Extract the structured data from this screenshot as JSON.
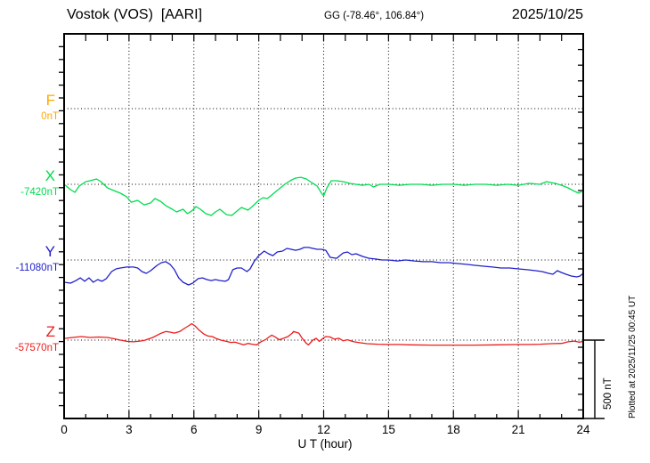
{
  "header": {
    "station": "Vostok (VOS)  [AARI]",
    "coords": "GG (-78.46°, 106.84°)",
    "date": "2025/10/25"
  },
  "axes": {
    "x_label": "U T (hour)",
    "x_ticks": [
      "0",
      "3",
      "6",
      "9",
      "12",
      "15",
      "18",
      "21",
      "24"
    ]
  },
  "scale_bar": {
    "label": "500 nT",
    "nT": 500
  },
  "footer_note": "Plotted at 2025/11/25 00:45 UT",
  "chart_data": {
    "type": "line",
    "title": "Vostok (VOS) [AARI] magnetogram 2025/10/25",
    "xlabel": "U T (hour)",
    "x_range": [
      0,
      24
    ],
    "x_ticks": [
      0,
      3,
      6,
      9,
      12,
      15,
      18,
      21,
      24
    ],
    "grid": "dotted vertical every 3 h, dotted horizontal baseline per component",
    "legend_position": "left margin",
    "y_scale": "scale bar of 500 nT at lower right",
    "points_format": "[hour_UT, deviation_nT_from_baseline]",
    "series": [
      {
        "name": "F",
        "color": "#FFA800",
        "baseline_label": "0nT",
        "baseline_nT": 0,
        "points": []
      },
      {
        "name": "X",
        "color": "#00DC50",
        "baseline_label": "-7420nT",
        "baseline_nT": -7420,
        "points": [
          [
            0,
            0
          ],
          [
            0.3,
            -34
          ],
          [
            0.5,
            -51
          ],
          [
            0.7,
            -11
          ],
          [
            1.0,
            17
          ],
          [
            1.2,
            23
          ],
          [
            1.5,
            34
          ],
          [
            1.7,
            17
          ],
          [
            2.0,
            -23
          ],
          [
            2.3,
            -40
          ],
          [
            2.6,
            -57
          ],
          [
            2.9,
            -80
          ],
          [
            3.1,
            -114
          ],
          [
            3.4,
            -102
          ],
          [
            3.7,
            -131
          ],
          [
            4.0,
            -119
          ],
          [
            4.2,
            -91
          ],
          [
            4.45,
            -108
          ],
          [
            4.7,
            -136
          ],
          [
            5.0,
            -159
          ],
          [
            5.2,
            -176
          ],
          [
            5.5,
            -159
          ],
          [
            5.7,
            -187
          ],
          [
            5.9,
            -170
          ],
          [
            6.1,
            -142
          ],
          [
            6.3,
            -159
          ],
          [
            6.55,
            -187
          ],
          [
            6.8,
            -199
          ],
          [
            7.0,
            -176
          ],
          [
            7.2,
            -159
          ],
          [
            7.5,
            -193
          ],
          [
            7.75,
            -199
          ],
          [
            8.0,
            -170
          ],
          [
            8.2,
            -148
          ],
          [
            8.5,
            -165
          ],
          [
            8.7,
            -142
          ],
          [
            9.0,
            -102
          ],
          [
            9.2,
            -85
          ],
          [
            9.4,
            -91
          ],
          [
            9.6,
            -68
          ],
          [
            9.8,
            -45
          ],
          [
            10.0,
            -23
          ],
          [
            10.2,
            0
          ],
          [
            10.45,
            23
          ],
          [
            10.7,
            40
          ],
          [
            10.95,
            45
          ],
          [
            11.2,
            34
          ],
          [
            11.45,
            11
          ],
          [
            11.7,
            -11
          ],
          [
            11.9,
            -57
          ],
          [
            12.0,
            -74
          ],
          [
            12.15,
            -23
          ],
          [
            12.35,
            23
          ],
          [
            12.6,
            23
          ],
          [
            12.9,
            17
          ],
          [
            13.2,
            6
          ],
          [
            13.5,
            0
          ],
          [
            13.8,
            -6
          ],
          [
            14.1,
            0
          ],
          [
            14.3,
            -17
          ],
          [
            14.6,
            0
          ],
          [
            15.0,
            0
          ],
          [
            15.5,
            -6
          ],
          [
            16.0,
            0
          ],
          [
            16.5,
            0
          ],
          [
            17.0,
            -6
          ],
          [
            17.5,
            0
          ],
          [
            18.0,
            0
          ],
          [
            18.5,
            -6
          ],
          [
            19.0,
            0
          ],
          [
            19.5,
            0
          ],
          [
            20.0,
            -6
          ],
          [
            20.5,
            0
          ],
          [
            21.0,
            -6
          ],
          [
            21.5,
            6
          ],
          [
            22.0,
            0
          ],
          [
            22.3,
            17
          ],
          [
            22.7,
            6
          ],
          [
            23.0,
            -6
          ],
          [
            23.3,
            -23
          ],
          [
            23.6,
            -45
          ],
          [
            23.8,
            -57
          ],
          [
            24.0,
            -40
          ]
        ]
      },
      {
        "name": "Y",
        "color": "#2020CC",
        "baseline_label": "-11080nT",
        "baseline_nT": -11080,
        "points": [
          [
            0,
            -142
          ],
          [
            0.3,
            -148
          ],
          [
            0.55,
            -131
          ],
          [
            0.75,
            -114
          ],
          [
            0.95,
            -136
          ],
          [
            1.15,
            -114
          ],
          [
            1.35,
            -142
          ],
          [
            1.55,
            -125
          ],
          [
            1.75,
            -136
          ],
          [
            1.95,
            -119
          ],
          [
            2.2,
            -74
          ],
          [
            2.4,
            -57
          ],
          [
            2.6,
            -51
          ],
          [
            2.9,
            -45
          ],
          [
            3.2,
            -45
          ],
          [
            3.4,
            -51
          ],
          [
            3.6,
            -74
          ],
          [
            3.8,
            -85
          ],
          [
            4.0,
            -68
          ],
          [
            4.3,
            -34
          ],
          [
            4.5,
            -17
          ],
          [
            4.7,
            -11
          ],
          [
            4.9,
            -28
          ],
          [
            5.1,
            -62
          ],
          [
            5.3,
            -114
          ],
          [
            5.5,
            -142
          ],
          [
            5.75,
            -159
          ],
          [
            5.95,
            -148
          ],
          [
            6.2,
            -119
          ],
          [
            6.4,
            -114
          ],
          [
            6.6,
            -125
          ],
          [
            6.8,
            -131
          ],
          [
            7.0,
            -125
          ],
          [
            7.2,
            -131
          ],
          [
            7.45,
            -136
          ],
          [
            7.6,
            -125
          ],
          [
            7.8,
            -62
          ],
          [
            8.0,
            -51
          ],
          [
            8.2,
            -51
          ],
          [
            8.45,
            -74
          ],
          [
            8.6,
            -57
          ],
          [
            8.8,
            -6
          ],
          [
            9.0,
            28
          ],
          [
            9.25,
            57
          ],
          [
            9.45,
            40
          ],
          [
            9.65,
            28
          ],
          [
            9.85,
            51
          ],
          [
            10.1,
            57
          ],
          [
            10.3,
            74
          ],
          [
            10.5,
            68
          ],
          [
            10.7,
            62
          ],
          [
            10.9,
            68
          ],
          [
            11.1,
            80
          ],
          [
            11.3,
            80
          ],
          [
            11.5,
            74
          ],
          [
            11.7,
            68
          ],
          [
            11.9,
            68
          ],
          [
            12.1,
            62
          ],
          [
            12.3,
            17
          ],
          [
            12.6,
            11
          ],
          [
            12.9,
            45
          ],
          [
            13.1,
            51
          ],
          [
            13.3,
            34
          ],
          [
            13.5,
            40
          ],
          [
            13.8,
            23
          ],
          [
            14.1,
            11
          ],
          [
            14.4,
            6
          ],
          [
            14.7,
            0
          ],
          [
            15.0,
            0
          ],
          [
            15.4,
            -6
          ],
          [
            15.8,
            0
          ],
          [
            16.2,
            -6
          ],
          [
            16.6,
            -11
          ],
          [
            17.0,
            -11
          ],
          [
            17.4,
            -17
          ],
          [
            17.8,
            -17
          ],
          [
            18.2,
            -23
          ],
          [
            18.6,
            -28
          ],
          [
            19.0,
            -34
          ],
          [
            19.4,
            -40
          ],
          [
            19.8,
            -45
          ],
          [
            20.2,
            -51
          ],
          [
            20.6,
            -51
          ],
          [
            21.0,
            -57
          ],
          [
            21.4,
            -62
          ],
          [
            21.8,
            -68
          ],
          [
            22.1,
            -74
          ],
          [
            22.4,
            -85
          ],
          [
            22.6,
            -91
          ],
          [
            22.8,
            -68
          ],
          [
            23.0,
            -80
          ],
          [
            23.2,
            -91
          ],
          [
            23.45,
            -102
          ],
          [
            23.7,
            -108
          ],
          [
            23.85,
            -102
          ],
          [
            24.0,
            -85
          ]
        ]
      },
      {
        "name": "Z",
        "color": "#EE1C1C",
        "baseline_label": "-57570nT",
        "baseline_nT": -57570,
        "points": [
          [
            0,
            11
          ],
          [
            0.4,
            17
          ],
          [
            0.8,
            23
          ],
          [
            1.2,
            17
          ],
          [
            1.6,
            20
          ],
          [
            2.0,
            17
          ],
          [
            2.3,
            9
          ],
          [
            2.6,
            0
          ],
          [
            2.9,
            -8
          ],
          [
            3.2,
            -11
          ],
          [
            3.5,
            -6
          ],
          [
            3.7,
            -2
          ],
          [
            4.1,
            17
          ],
          [
            4.5,
            45
          ],
          [
            4.7,
            55
          ],
          [
            4.9,
            51
          ],
          [
            5.1,
            45
          ],
          [
            5.35,
            55
          ],
          [
            5.55,
            74
          ],
          [
            5.75,
            91
          ],
          [
            5.9,
            105
          ],
          [
            6.05,
            91
          ],
          [
            6.25,
            63
          ],
          [
            6.45,
            40
          ],
          [
            6.65,
            26
          ],
          [
            6.85,
            23
          ],
          [
            7.05,
            9
          ],
          [
            7.25,
            0
          ],
          [
            7.5,
            -8
          ],
          [
            7.7,
            -15
          ],
          [
            7.9,
            -13
          ],
          [
            8.1,
            -21
          ],
          [
            8.3,
            -30
          ],
          [
            8.5,
            -21
          ],
          [
            8.7,
            -26
          ],
          [
            8.9,
            -30
          ],
          [
            9.1,
            -11
          ],
          [
            9.3,
            2
          ],
          [
            9.5,
            23
          ],
          [
            9.6,
            32
          ],
          [
            9.75,
            21
          ],
          [
            9.95,
            2
          ],
          [
            10.15,
            12
          ],
          [
            10.35,
            23
          ],
          [
            10.55,
            45
          ],
          [
            10.6,
            55
          ],
          [
            10.85,
            45
          ],
          [
            11.0,
            13
          ],
          [
            11.2,
            -21
          ],
          [
            11.3,
            -30
          ],
          [
            11.5,
            0
          ],
          [
            11.65,
            12
          ],
          [
            11.8,
            -8
          ],
          [
            11.95,
            9
          ],
          [
            12.1,
            23
          ],
          [
            12.3,
            20
          ],
          [
            12.5,
            6
          ],
          [
            12.7,
            12
          ],
          [
            12.9,
            -4
          ],
          [
            13.1,
            2
          ],
          [
            13.4,
            -11
          ],
          [
            13.7,
            -17
          ],
          [
            14.0,
            -23
          ],
          [
            14.5,
            -26
          ],
          [
            15.0,
            -28
          ],
          [
            15.5,
            -28
          ],
          [
            16.0,
            -30
          ],
          [
            17.0,
            -32
          ],
          [
            18.0,
            -32
          ],
          [
            19.0,
            -32
          ],
          [
            20.0,
            -30
          ],
          [
            21.0,
            -28
          ],
          [
            21.5,
            -28
          ],
          [
            22.0,
            -26
          ],
          [
            22.5,
            -23
          ],
          [
            23.0,
            -21
          ],
          [
            23.3,
            -11
          ],
          [
            23.6,
            -6
          ],
          [
            23.8,
            -13
          ],
          [
            24.0,
            -9
          ]
        ]
      }
    ]
  }
}
